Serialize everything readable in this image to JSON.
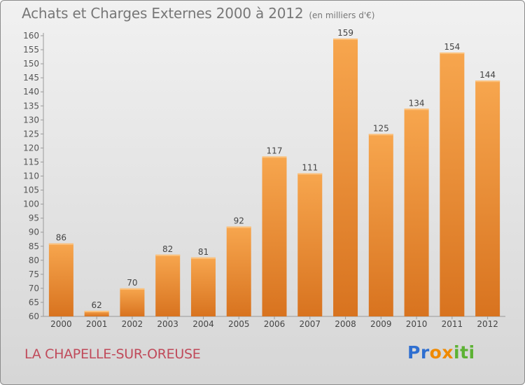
{
  "header": {
    "title": "Achats et Charges Externes 2000 à 2012",
    "subtitle": "(en milliers d'€)"
  },
  "footer": {
    "location": "LA CHAPELLE-SUR-OREUSE",
    "logo_letters": [
      "P",
      "r",
      "o",
      "x",
      "i",
      "t",
      "i"
    ],
    "logo_colors": [
      "#2f6fd0",
      "#2f6fd0",
      "#f08a00",
      "#f08a00",
      "#5db234",
      "#5db234",
      "#5db234"
    ]
  },
  "chart_data": {
    "type": "bar",
    "title": "Achats et Charges Externes 2000 à 2012",
    "subtitle": "(en milliers d'€)",
    "categories": [
      "2000",
      "2001",
      "2002",
      "2003",
      "2004",
      "2005",
      "2006",
      "2007",
      "2008",
      "2009",
      "2010",
      "2011",
      "2012"
    ],
    "values": [
      86,
      62,
      70,
      82,
      81,
      92,
      117,
      111,
      159,
      125,
      134,
      154,
      144
    ],
    "ylim": [
      60,
      160
    ],
    "ytick_step": 5,
    "grid": false,
    "bar_color_top": "#f7a64e",
    "bar_color_bottom": "#d8731f"
  }
}
